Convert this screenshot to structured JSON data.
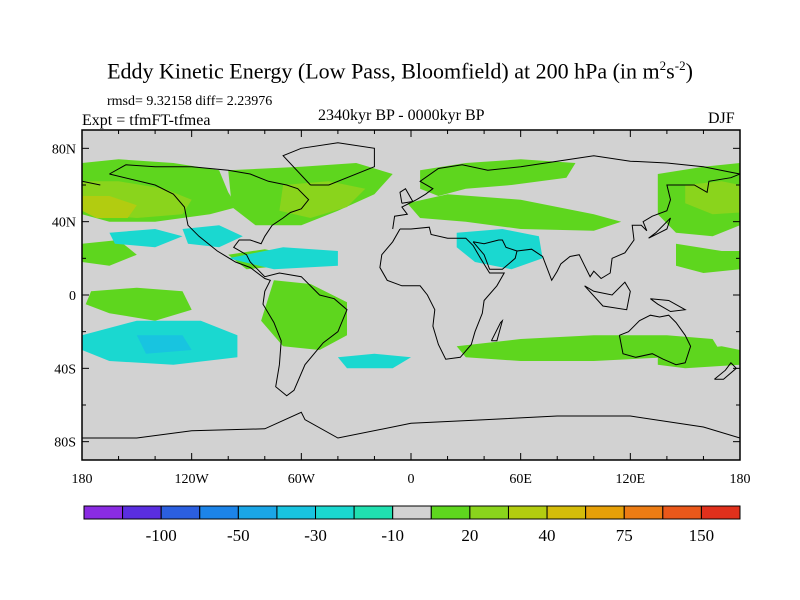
{
  "chart_data": {
    "type": "heatmap",
    "title": "Eddy Kinetic Energy (Low Pass, Bloomfield) at 200 hPa (in m",
    "title_units": [
      "2",
      "s",
      "-2",
      ")"
    ],
    "stats": "rmsd= 9.32158 diff= 2.23976",
    "experiment": "Expt = tfmFT-tfmea",
    "period": "2340kyr BP - 0000kyr BP",
    "season": "DJF",
    "x_ticks": [
      {
        "lon": -180,
        "label": "180"
      },
      {
        "lon": -120,
        "label": "120W"
      },
      {
        "lon": -60,
        "label": "60W"
      },
      {
        "lon": 0,
        "label": "0"
      },
      {
        "lon": 60,
        "label": "60E"
      },
      {
        "lon": 120,
        "label": "120E"
      },
      {
        "lon": 180,
        "label": "180"
      }
    ],
    "y_ticks": [
      {
        "lat": 80,
        "label": "80N"
      },
      {
        "lat": 40,
        "label": "40N"
      },
      {
        "lat": 0,
        "label": "0"
      },
      {
        "lat": -40,
        "label": "40S"
      },
      {
        "lat": -80,
        "label": "80S"
      }
    ],
    "xlim": [
      -180,
      180
    ],
    "ylim": [
      -90,
      90
    ],
    "colorbar": {
      "colors": [
        "#8a2be2",
        "#5a2ee0",
        "#2b5fe0",
        "#1c84e8",
        "#1aa6e6",
        "#18c4e0",
        "#1ad8d0",
        "#20e0b0",
        "#d2d2d2",
        "#5ed61e",
        "#8ad41c",
        "#b2cc10",
        "#d4bc0a",
        "#e6a008",
        "#ec7c14",
        "#ea581a",
        "#e0301c"
      ],
      "labels": [
        {
          "boundary": 2,
          "text": "-100"
        },
        {
          "boundary": 4,
          "text": "-50"
        },
        {
          "boundary": 6,
          "text": "-30"
        },
        {
          "boundary": 8,
          "text": "-10"
        },
        {
          "boundary": 10,
          "text": "20"
        },
        {
          "boundary": 12,
          "text": "40"
        },
        {
          "boundary": 14,
          "text": "75"
        },
        {
          "boundary": 16,
          "text": "150"
        }
      ]
    },
    "background_color": "#d2d2d2",
    "anomaly_regions": [
      {
        "name": "north-pacific-band",
        "color": "#5ed61e",
        "points": [
          [
            -180,
            72
          ],
          [
            -160,
            74
          ],
          [
            -130,
            72
          ],
          [
            -105,
            68
          ],
          [
            -100,
            56
          ],
          [
            -95,
            48
          ],
          [
            -110,
            44
          ],
          [
            -140,
            40
          ],
          [
            -165,
            40
          ],
          [
            -180,
            44
          ]
        ]
      },
      {
        "name": "north-pacific-core",
        "color": "#8ad41c",
        "points": [
          [
            -180,
            62
          ],
          [
            -160,
            62
          ],
          [
            -135,
            58
          ],
          [
            -120,
            52
          ],
          [
            -125,
            44
          ],
          [
            -150,
            42
          ],
          [
            -175,
            44
          ],
          [
            -180,
            48
          ]
        ]
      },
      {
        "name": "north-pacific-max",
        "color": "#b2cc10",
        "points": [
          [
            -180,
            54
          ],
          [
            -165,
            54
          ],
          [
            -150,
            49
          ],
          [
            -155,
            42
          ],
          [
            -172,
            42
          ],
          [
            -180,
            46
          ]
        ]
      },
      {
        "name": "north-america-band",
        "color": "#5ed61e",
        "points": [
          [
            -100,
            68
          ],
          [
            -60,
            70
          ],
          [
            -30,
            72
          ],
          [
            -10,
            66
          ],
          [
            -20,
            55
          ],
          [
            -40,
            46
          ],
          [
            -60,
            38
          ],
          [
            -85,
            38
          ],
          [
            -98,
            48
          ]
        ]
      },
      {
        "name": "north-atlantic-core",
        "color": "#8ad41c",
        "points": [
          [
            -70,
            60
          ],
          [
            -45,
            62
          ],
          [
            -25,
            58
          ],
          [
            -35,
            48
          ],
          [
            -55,
            42
          ],
          [
            -72,
            46
          ]
        ]
      },
      {
        "name": "europe-band",
        "color": "#5ed61e",
        "points": [
          [
            5,
            68
          ],
          [
            30,
            72
          ],
          [
            60,
            74
          ],
          [
            90,
            72
          ],
          [
            85,
            64
          ],
          [
            55,
            60
          ],
          [
            30,
            58
          ],
          [
            15,
            54
          ],
          [
            5,
            58
          ]
        ]
      },
      {
        "name": "eurasia-south-band",
        "color": "#5ed61e",
        "points": [
          [
            -2,
            50
          ],
          [
            20,
            55
          ],
          [
            60,
            52
          ],
          [
            100,
            44
          ],
          [
            115,
            40
          ],
          [
            100,
            35
          ],
          [
            60,
            36
          ],
          [
            30,
            40
          ],
          [
            5,
            42
          ]
        ]
      },
      {
        "name": "west-pacific-band",
        "color": "#5ed61e",
        "points": [
          [
            135,
            66
          ],
          [
            160,
            70
          ],
          [
            180,
            72
          ],
          [
            180,
            38
          ],
          [
            165,
            32
          ],
          [
            145,
            34
          ],
          [
            135,
            44
          ]
        ]
      },
      {
        "name": "west-pacific-core",
        "color": "#8ad41c",
        "points": [
          [
            150,
            60
          ],
          [
            170,
            62
          ],
          [
            180,
            60
          ],
          [
            180,
            45
          ],
          [
            165,
            44
          ],
          [
            150,
            50
          ]
        ]
      },
      {
        "name": "subtropical-pacific-pos",
        "color": "#5ed61e",
        "points": [
          [
            -180,
            28
          ],
          [
            -160,
            30
          ],
          [
            -150,
            22
          ],
          [
            -165,
            16
          ],
          [
            -180,
            18
          ]
        ]
      },
      {
        "name": "equatorial-pacific-pos",
        "color": "#5ed61e",
        "points": [
          [
            -175,
            2
          ],
          [
            -150,
            4
          ],
          [
            -125,
            2
          ],
          [
            -120,
            -8
          ],
          [
            -140,
            -14
          ],
          [
            -165,
            -10
          ],
          [
            -178,
            -5
          ]
        ]
      },
      {
        "name": "south-america-pos",
        "color": "#5ed61e",
        "points": [
          [
            -75,
            8
          ],
          [
            -55,
            6
          ],
          [
            -35,
            -4
          ],
          [
            -35,
            -22
          ],
          [
            -50,
            -30
          ],
          [
            -70,
            -28
          ],
          [
            -82,
            -14
          ]
        ]
      },
      {
        "name": "caribbean-pos",
        "color": "#5ed61e",
        "points": [
          [
            -100,
            22
          ],
          [
            -80,
            25
          ],
          [
            -65,
            22
          ],
          [
            -70,
            16
          ],
          [
            -90,
            14
          ]
        ]
      },
      {
        "name": "indian-ocean-pos",
        "color": "#5ed61e",
        "points": [
          [
            25,
            -28
          ],
          [
            60,
            -24
          ],
          [
            100,
            -22
          ],
          [
            140,
            -22
          ],
          [
            165,
            -24
          ],
          [
            170,
            -32
          ],
          [
            140,
            -34
          ],
          [
            100,
            -36
          ],
          [
            60,
            -36
          ],
          [
            30,
            -34
          ]
        ]
      },
      {
        "name": "southwest-pacific-pos",
        "color": "#5ed61e",
        "points": [
          [
            135,
            -32
          ],
          [
            170,
            -28
          ],
          [
            180,
            -30
          ],
          [
            180,
            -38
          ],
          [
            150,
            -40
          ],
          [
            135,
            -38
          ]
        ]
      },
      {
        "name": "north-pacific-neg",
        "color": "#1ad8d0",
        "points": [
          [
            -165,
            34
          ],
          [
            -140,
            36
          ],
          [
            -125,
            32
          ],
          [
            -140,
            26
          ],
          [
            -162,
            28
          ]
        ]
      },
      {
        "name": "east-pacific-neg",
        "color": "#1ad8d0",
        "points": [
          [
            -125,
            36
          ],
          [
            -105,
            38
          ],
          [
            -92,
            32
          ],
          [
            -105,
            26
          ],
          [
            -122,
            28
          ]
        ]
      },
      {
        "name": "south-pacific-neg",
        "color": "#1ad8d0",
        "points": [
          [
            -180,
            -22
          ],
          [
            -150,
            -14
          ],
          [
            -115,
            -14
          ],
          [
            -95,
            -22
          ],
          [
            -95,
            -34
          ],
          [
            -130,
            -38
          ],
          [
            -165,
            -36
          ],
          [
            -180,
            -30
          ]
        ]
      },
      {
        "name": "south-pacific-neg-core",
        "color": "#18c4e0",
        "points": [
          [
            -150,
            -22
          ],
          [
            -125,
            -22
          ],
          [
            -120,
            -30
          ],
          [
            -145,
            -32
          ]
        ]
      },
      {
        "name": "north-atlantic-neg",
        "color": "#1ad8d0",
        "points": [
          [
            -100,
            20
          ],
          [
            -70,
            26
          ],
          [
            -40,
            24
          ],
          [
            -40,
            16
          ],
          [
            -75,
            14
          ]
        ]
      },
      {
        "name": "arabia-neg",
        "color": "#1ad8d0",
        "points": [
          [
            25,
            34
          ],
          [
            50,
            36
          ],
          [
            70,
            32
          ],
          [
            72,
            20
          ],
          [
            55,
            14
          ],
          [
            35,
            18
          ],
          [
            25,
            26
          ]
        ]
      },
      {
        "name": "southern-atlantic-neg",
        "color": "#1ad8d0",
        "points": [
          [
            -40,
            -34
          ],
          [
            -20,
            -32
          ],
          [
            0,
            -34
          ],
          [
            -10,
            -40
          ],
          [
            -35,
            -40
          ]
        ]
      },
      {
        "name": "east-asia-pos",
        "color": "#5ed61e",
        "points": [
          [
            145,
            28
          ],
          [
            170,
            24
          ],
          [
            180,
            24
          ],
          [
            180,
            14
          ],
          [
            160,
            12
          ],
          [
            145,
            16
          ]
        ]
      }
    ]
  }
}
